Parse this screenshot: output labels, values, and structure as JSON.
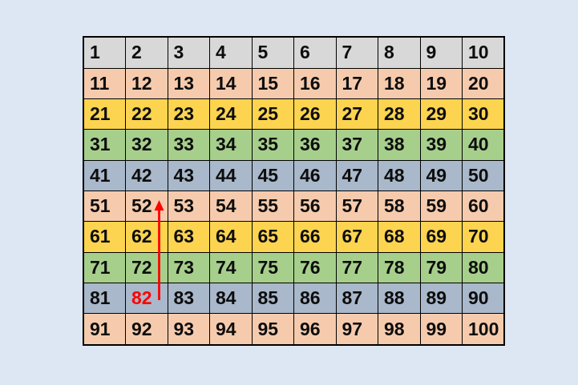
{
  "background_color": "#DCE7F3",
  "table": {
    "description": "hundred chart grid 1-100, 10 columns by 10 rows",
    "border_color": "#000000",
    "rows": [
      {
        "bg": "#D8D8D8",
        "values": [
          "1",
          "2",
          "3",
          "4",
          "5",
          "6",
          "7",
          "8",
          "9",
          "10"
        ]
      },
      {
        "bg": "#F6CBAD",
        "values": [
          "11",
          "12",
          "13",
          "14",
          "15",
          "16",
          "17",
          "18",
          "19",
          "20"
        ]
      },
      {
        "bg": "#FDD44F",
        "values": [
          "21",
          "22",
          "23",
          "24",
          "25",
          "26",
          "27",
          "28",
          "29",
          "30"
        ]
      },
      {
        "bg": "#A7CF8C",
        "values": [
          "31",
          "32",
          "33",
          "34",
          "35",
          "36",
          "37",
          "38",
          "39",
          "40"
        ]
      },
      {
        "bg": "#A9B8CA",
        "values": [
          "41",
          "42",
          "43",
          "44",
          "45",
          "46",
          "47",
          "48",
          "49",
          "50"
        ]
      },
      {
        "bg": "#F6CBAD",
        "values": [
          "51",
          "52",
          "53",
          "54",
          "55",
          "56",
          "57",
          "58",
          "59",
          "60"
        ]
      },
      {
        "bg": "#FDD44F",
        "values": [
          "61",
          "62",
          "63",
          "64",
          "65",
          "66",
          "67",
          "68",
          "69",
          "70"
        ]
      },
      {
        "bg": "#A7CF8C",
        "values": [
          "71",
          "72",
          "73",
          "74",
          "75",
          "76",
          "77",
          "78",
          "79",
          "80"
        ]
      },
      {
        "bg": "#A9B8CA",
        "values": [
          "81",
          "82",
          "83",
          "84",
          "85",
          "86",
          "87",
          "88",
          "89",
          "90"
        ]
      },
      {
        "bg": "#F6CBAD",
        "values": [
          "91",
          "92",
          "93",
          "94",
          "95",
          "96",
          "97",
          "98",
          "99",
          "100"
        ]
      }
    ]
  },
  "annotations": {
    "highlighted_cell": "82",
    "highlight_color": "#FF0000",
    "right_aligned_cell": "23",
    "arrow": {
      "from": "82",
      "to": "52",
      "direction": "up",
      "color": "#FF0000"
    }
  }
}
